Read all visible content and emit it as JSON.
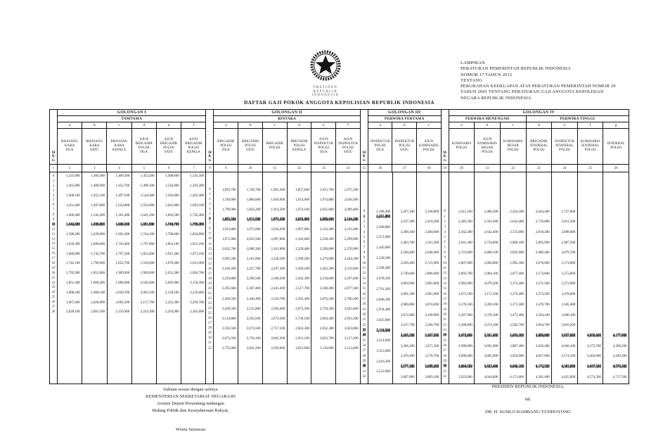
{
  "lampiran": {
    "lines": [
      "LAMPIRAN",
      "PERATURAN PEMERINTAH  REPUBLIK INDONESIA",
      "NOMOR 17 TAHUN 2012",
      "TENTANG",
      "PERUBAHAN KEDELAPAN ATAS PERATURAN PEMERINTAH NOMOR 29",
      "TAHUN 2001 TENTANG PERATURAN GAJI ANGGOTA KEPOLISIAN",
      "NEGARA REPUBLIK INDONESIA"
    ]
  },
  "seal": {
    "caption_line1": "PRESIDEN",
    "caption_line2": "REPUBLIK  INDONESIA"
  },
  "title": "DAFTAR GAJI POKOK ANGGOTA KEPOLISIAN  REPUBLIK INDONESIA",
  "table": {
    "mkg_label": [
      "M",
      "K",
      "G"
    ],
    "sections": [
      {
        "golongan": "GOLONGAN I",
        "groups": [
          {
            "label": "TAMTAMA",
            "span": 6
          }
        ],
        "mkg_no": "1",
        "columns": [
          {
            "no": "2",
            "letter": "a",
            "rank": [
              "BHAYANG",
              "KARA",
              "DUA"
            ]
          },
          {
            "no": "3",
            "letter": "b",
            "rank": [
              "BHAYANG",
              "KARA",
              "SATU"
            ]
          },
          {
            "no": "4",
            "letter": "c",
            "rank": [
              "BHAYANG",
              "KARA",
              "KEPALA"
            ]
          },
          {
            "no": "5",
            "letter": "d",
            "rank": [
              "AJUN",
              "BRIGADIR",
              "POLISI",
              "DUA"
            ]
          },
          {
            "no": "6",
            "letter": "e",
            "rank": [
              "AJUN",
              "BRIGADIR",
              "POLISI",
              "SATU"
            ]
          },
          {
            "no": "7",
            "letter": "f",
            "rank": [
              "AJUN",
              "BRIGADIR",
              "POLISI",
              "KEPALA"
            ]
          }
        ],
        "mkg_max": 28,
        "blur_mkg": [
          10
        ],
        "rows": {
          "0": [
            "1,325,000",
            "1,366,400",
            "1,409,200",
            "1,453,200",
            "1,498,600",
            "1,545,500"
          ],
          "2": [
            "1,365,900",
            "1,408,600",
            "1,452,700",
            "1,498,100",
            "1,544,900",
            "1,593,200"
          ],
          "4": [
            "1,408,100",
            "1,452,100",
            "1,497,500",
            "1,544,300",
            "1,592,600",
            "1,642,400"
          ],
          "6": [
            "1,451,600",
            "1,497,000",
            "1,543,800",
            "1,592,000",
            "1,641,800",
            "1,693,100"
          ],
          "8": [
            "1,496,400",
            "1,543,200",
            "1,591,400",
            "1,641,200",
            "1,692,500",
            "1,745,400"
          ],
          "10": [
            "1,542,600",
            "1,590,800",
            "1,640,500",
            "1,691,900",
            "1,744,700",
            "1,799,300"
          ],
          "12": [
            "1,590,200",
            "1,639,900",
            "1,691,200",
            "1,744,100",
            "1,798,600",
            "1,854,800"
          ],
          "14": [
            "1,639,300",
            "1,690,600",
            "1,743,400",
            "1,797,900",
            "1,854,100",
            "1,912,100"
          ],
          "16": [
            "1,689,900",
            "1,742,700",
            "1,797,200",
            "1,853,400",
            "1,911,300",
            "1,971,100"
          ],
          "18": [
            "1,742,100",
            "1,796,600",
            "1,852,700",
            "1,910,600",
            "1,970,400",
            "2,031,900"
          ],
          "20": [
            "1,795,900",
            "1,852,000",
            "1,909,900",
            "1,969,600",
            "2,031,200",
            "2,094,700"
          ],
          "22": [
            "1,851,300",
            "1,909,200",
            "1,968,900",
            "2,030,400",
            "2,093,900",
            "2,159,300"
          ],
          "24": [
            "1,908,500",
            "1,968,100",
            "2,029,700",
            "2,093,100",
            "2,158,500",
            "2,226,000"
          ],
          "26": [
            "1,967,400",
            "2,028,900",
            "2,092,300",
            "2,157,700",
            "2,225,300",
            "2,294,700"
          ],
          "28": [
            "2,028,100",
            "2,091,500",
            "2,156,900",
            "2,224,300",
            "2,293,900",
            "2,365,600"
          ]
        }
      },
      {
        "golongan": "GOLONGAN II",
        "groups": [
          {
            "label": "BINTARA",
            "span": 6
          }
        ],
        "mkg_no": "8",
        "columns": [
          {
            "no": "9",
            "letter": "a",
            "rank": [
              "BRIGADIR",
              "POLISI",
              "DUA"
            ]
          },
          {
            "no": "10",
            "letter": "b",
            "rank": [
              "BRIGADIR",
              "POLISI",
              "SATU"
            ]
          },
          {
            "no": "11",
            "letter": "c",
            "rank": [
              "BRIGADIR",
              "POLISI"
            ]
          },
          {
            "no": "12",
            "letter": "d",
            "rank": [
              "BRIGADIR",
              "POLISI",
              "KEPALA"
            ]
          },
          {
            "no": "13",
            "letter": "e",
            "rank": [
              "AJUN",
              "INSPEKTUR",
              "POLISI",
              "DUA"
            ]
          },
          {
            "no": "14",
            "letter": "f",
            "rank": [
              "AJUN",
              "INSPEKTUR",
              "POLISI",
              "SATU"
            ]
          }
        ],
        "mkg_max": 32,
        "blur_mkg": [
          6
        ],
        "rows": {
          "0": [
            "1,693,700",
            "1,746,700",
            "1,801,300",
            "1,857,600",
            "1,915,700",
            "1,975,500"
          ],
          "2": [
            "1,746,000",
            "1,800,600",
            "1,856,900",
            "1,914,900",
            "1,974,800",
            "2,036,500"
          ],
          "4": [
            "1,799,900",
            "1,856,200",
            "1,914,200",
            "1,974,100",
            "2,035,800",
            "2,099,400"
          ],
          "6": [
            "1,855,500",
            "1,913,500",
            "1,973,300",
            "2,035,000",
            "2,098,600",
            "2,164,200"
          ],
          "8": [
            "1,912,800",
            "1,972,600",
            "2,034,200",
            "2,097,800",
            "2,163,400",
            "2,231,000"
          ],
          "10": [
            "1,971,800",
            "2,033,500",
            "2,097,000",
            "2,162,600",
            "2,230,200",
            "2,299,900"
          ],
          "12": [
            "2,032,700",
            "2,096,300",
            "2,161,800",
            "2,229,400",
            "2,299,000",
            "2,370,900"
          ],
          "14": [
            "2,095,500",
            "2,161,000",
            "2,228,500",
            "2,298,200",
            "2,370,000",
            "2,444,100"
          ],
          "16": [
            "2,160,200",
            "2,227,700",
            "2,297,300",
            "2,369,100",
            "2,443,200",
            "2,519,600"
          ],
          "18": [
            "2,226,800",
            "2,296,500",
            "2,368,200",
            "2,442,300",
            "2,518,600",
            "2,597,400"
          ],
          "20": [
            "2,295,600",
            "2,367,400",
            "2,441,400",
            "2,517,700",
            "2,596,400",
            "2,677,500"
          ],
          "22": [
            "2,366,500",
            "2,440,400",
            "2,516,700",
            "2,595,400",
            "2,676,500",
            "2,760,200"
          ],
          "24": [
            "2,439,500",
            "2,515,800",
            "2,594,400",
            "2,675,500",
            "2,759,200",
            "2,845,400"
          ],
          "26": [
            "2,514,800",
            "2,593,500",
            "2,674,500",
            "2,758,100",
            "2,844,400",
            "2,933,300"
          ],
          "28": [
            "2,592,500",
            "2,673,500",
            "2,757,100",
            "2,843,300",
            "2,932,300",
            "3,023,800"
          ],
          "30": [
            "2,672,500",
            "2,756,100",
            "2,842,200",
            "2,931,100",
            "3,022,700",
            "3,117,200"
          ],
          "32": [
            "2,755,000",
            "2,841,200",
            "2,930,000",
            "3,021,600",
            "3,116,000",
            "3,213,400"
          ]
        }
      },
      {
        "golongan": "GOLONGAN III",
        "groups": [
          {
            "label": "PERWIRA PERTAMA",
            "span": 3
          }
        ],
        "mkg_no": "15",
        "columns": [
          {
            "no": "16",
            "letter": "a",
            "rank": [
              "INSPEKTUR",
              "POLISI",
              "DUA"
            ]
          },
          {
            "no": "17",
            "letter": "b",
            "rank": [
              "INSPEKTUR",
              "POLISI",
              "SATU"
            ]
          },
          {
            "no": "18",
            "letter": "c",
            "rank": [
              "AJUN",
              "KOMISARIS",
              "POLISI"
            ]
          }
        ],
        "mkg_max": 32,
        "blur_mkg": [
          1,
          23,
          24,
          30
        ],
        "rows": {
          "0": [
            "2,198,400",
            "2,267,200",
            "2,338,000"
          ],
          "1": [
            "2,231,800",
            "",
            ""
          ],
          "2": [
            "",
            "2,337,300",
            "2,410,200"
          ],
          "3": [
            "2,300,800",
            "",
            ""
          ],
          "4": [
            "",
            "2,409,300",
            "2,484,600"
          ],
          "5": [
            "2,371,800",
            "",
            ""
          ],
          "6": [
            "",
            "2,483,700",
            "2,561,300"
          ],
          "7": [
            "2,445,000",
            "",
            ""
          ],
          "8": [
            "",
            "2,560,400",
            "2,640,400"
          ],
          "9": [
            "2,520,500",
            "",
            ""
          ],
          "10": [
            "",
            "2,639,400",
            "2,721,900"
          ],
          "11": [
            "2,598,300",
            "",
            ""
          ],
          "12": [
            "",
            "2,720,600",
            "2,806,000"
          ],
          "13": [
            "2,678,500",
            "",
            ""
          ],
          "14": [
            "",
            "2,804,900",
            "2,892,600"
          ],
          "15": [
            "2,761,200",
            "",
            ""
          ],
          "16": [
            "",
            "2,891,500",
            "2,981,900"
          ],
          "17": [
            "2,846,500",
            "",
            ""
          ],
          "18": [
            "",
            "2,980,800",
            "3,074,000"
          ],
          "19": [
            "2,934,400",
            "",
            ""
          ],
          "20": [
            "",
            "3,072,800",
            "3,168,900"
          ],
          "21": [
            "3,025,600",
            "",
            ""
          ],
          "22": [
            "",
            "3,167,700",
            "3,266,700"
          ],
          "23": [
            "3,118,500",
            "",
            ""
          ],
          "24": [
            "",
            "3,265,500",
            "3,367,500"
          ],
          "25": [
            "3,214,600",
            "",
            ""
          ],
          "26": [
            "",
            "3,366,300",
            "3,471,500"
          ],
          "27": [
            "3,313,900",
            "",
            ""
          ],
          "28": [
            "",
            "3,470,200",
            "3,578,700"
          ],
          "29": [
            "3,416,200",
            "",
            ""
          ],
          "30": [
            "",
            "3,577,300",
            "3,689,200"
          ],
          "31": [
            "3,521,600",
            "",
            ""
          ],
          "32": [
            "",
            "3,687,800",
            "3,803,100"
          ]
        }
      },
      {
        "golongan": "GOLONGAN IV",
        "groups": [
          {
            "label": "PERWIRA MENENGAH",
            "span": 3
          },
          {
            "label": "PERWIRA TINGGI",
            "span": 4
          }
        ],
        "mkg_no": "19",
        "columns": [
          {
            "no": "20",
            "letter": "a",
            "rank": [
              "KOMISARIS",
              "POLISI"
            ]
          },
          {
            "no": "21",
            "letter": "b",
            "rank": [
              "AJUN",
              "KOMISARIS",
              "BESAR",
              "POLISI"
            ]
          },
          {
            "no": "22",
            "letter": "c",
            "rank": [
              "KOMISARIS",
              "BESAR",
              "POLISI"
            ]
          },
          {
            "no": "23",
            "letter": "d",
            "rank": [
              "BRIGADIR",
              "JENDERAL",
              "POLISI"
            ]
          },
          {
            "no": "24",
            "letter": "e",
            "rank": [
              "INSPEKTUR",
              "JENDERAL",
              "POLISI"
            ]
          },
          {
            "no": "25",
            "letter": "f",
            "rank": [
              "KOMISARIS",
              "JENDERAL",
              "POLISI"
            ]
          },
          {
            "no": "26",
            "letter": "g",
            "rank": [
              "JENDERAL",
              "POLISI"
            ]
          }
        ],
        "mkg_max": 32,
        "blur_mkg": [
          24,
          30
        ],
        "rows": {
          "0": [
            "2,411,100",
            "2,486,500",
            "2,564,200",
            "2,644,400",
            "2,727,000",
            "",
            ""
          ],
          "2": [
            "2,485,500",
            "2,563,300",
            "2,643,400",
            "2,726,000",
            "2,811,200",
            "",
            ""
          ],
          "4": [
            "2,562,300",
            "2,642,400",
            "2,725,000",
            "2,810,200",
            "2,898,000",
            "",
            ""
          ],
          "6": [
            "2,641,400",
            "2,724,000",
            "2,809,100",
            "2,895,900",
            "2,987,500",
            "",
            ""
          ],
          "8": [
            "2,723,000",
            "2,808,100",
            "2,895,900",
            "2,986,400",
            "3,079,700",
            "",
            ""
          ],
          "10": [
            "2,807,000",
            "2,894,800",
            "2,985,300",
            "3,078,600",
            "3,174,800",
            "",
            ""
          ],
          "12": [
            "2,893,700",
            "2,984,100",
            "3,077,400",
            "3,173,600",
            "3,272,800",
            "",
            ""
          ],
          "14": [
            "2,983,000",
            "3,076,200",
            "3,172,400",
            "3,271,500",
            "3,373,900",
            "",
            ""
          ],
          "16": [
            "3,075,100",
            "3,171,200",
            "3,270,400",
            "3,372,500",
            "3,478,000",
            "",
            ""
          ],
          "18": [
            "3,170,100",
            "3,269,100",
            "3,371,300",
            "3,476,700",
            "3,585,400",
            "",
            ""
          ],
          "20": [
            "3,267,900",
            "3,370,100",
            "3,475,400",
            "3,584,100",
            "3,696,100",
            "",
            ""
          ],
          "22": [
            "3,368,800",
            "3,474,100",
            "3,582,700",
            "3,694,700",
            "3,810,200",
            "",
            ""
          ],
          "24": [
            "3,472,800",
            "3,581,400",
            "3,693,300",
            "3,808,800",
            "3,927,800",
            "4,050,600",
            "4,177,900"
          ],
          "26": [
            "3,580,000",
            "3,691,900",
            "3,807,400",
            "3,926,400",
            "4,049,100",
            "4,175,700",
            "4,306,200"
          ],
          "28": [
            "3,690,600",
            "3,805,900",
            "3,924,900",
            "4,047,600",
            "4,174,100",
            "4,304,600",
            "4,439,200"
          ],
          "30": [
            "3,804,500",
            "3,923,400",
            "4,046,100",
            "4,172,500",
            "4,303,000",
            "4,437,500",
            "4,576,300"
          ],
          "32": [
            "3,922,000",
            "4,044,600",
            "4,171,000",
            "4,301,400",
            "4,435,800",
            "4,574,500",
            "4,717,500"
          ]
        }
      }
    ]
  },
  "footer_left": {
    "lines": [
      "Salinan sesuai dengan aslinya",
      "KEMENTERIAN SEKRETARIAT NEGARA RI",
      "Asisten Deputi Perundang-undangan",
      "Bidang Politik dan Kesejahteraan  Rakyat,"
    ],
    "signer": "Wisnu Setiawan"
  },
  "footer_right": {
    "line1": "PRESIDEN REPUBLIK INDONESIA,",
    "line2": "ttd.",
    "line3": "DR.  H. SUSILO BAMBANG YUDHOYONO"
  }
}
